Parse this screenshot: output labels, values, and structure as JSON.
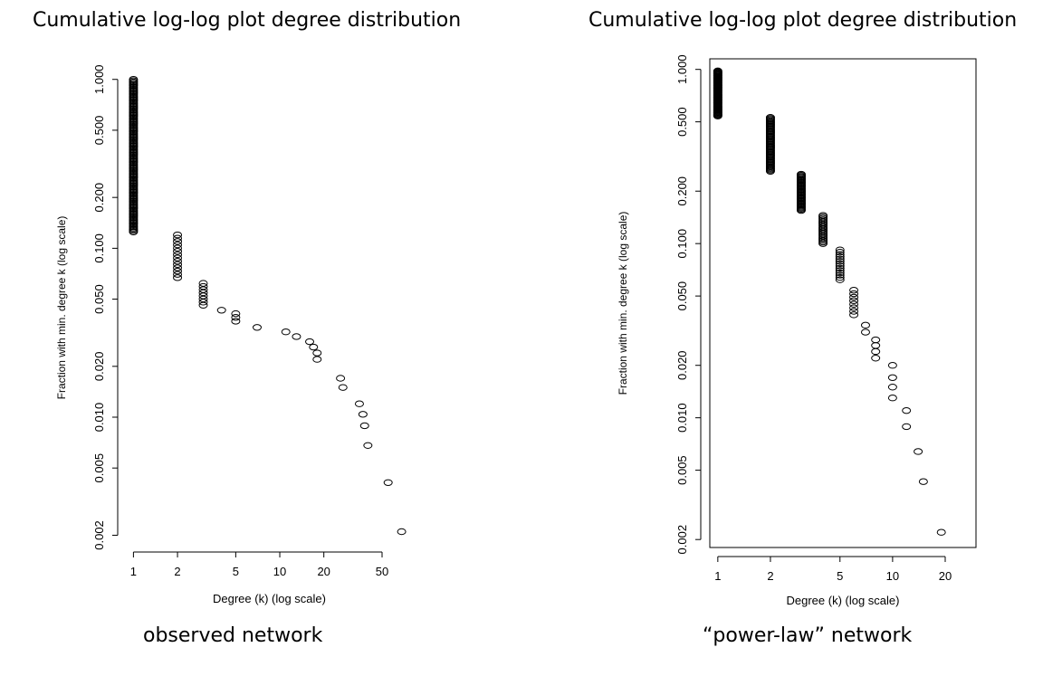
{
  "chart_data": [
    {
      "type": "scatter",
      "title": "Cumulative log-log plot degree distribution",
      "caption": "observed network",
      "xlabel": "Degree (k) (log scale)",
      "ylabel": "Fraction with min. degree k (log scale)",
      "xscale": "log",
      "yscale": "log",
      "xlim": [
        0.9,
        80
      ],
      "ylim": [
        0.0018,
        1.1
      ],
      "x_ticks": [
        1,
        2,
        5,
        10,
        20,
        50
      ],
      "x_tick_labels": [
        "1",
        "2",
        "5",
        "10",
        "20",
        "50"
      ],
      "y_ticks": [
        0.002,
        0.005,
        0.01,
        0.02,
        0.05,
        0.1,
        0.2,
        0.5,
        1.0
      ],
      "y_tick_labels": [
        "0.002",
        "0.005",
        "0.010",
        "0.020",
        "0.050",
        "0.100",
        "0.200",
        "0.500",
        "1.000"
      ],
      "box": false,
      "grid": false,
      "column_ranges": [
        {
          "x": 1,
          "y_from": 0.125,
          "y_to": 1.0,
          "count": 120
        },
        {
          "x": 2,
          "y_from": 0.067,
          "y_to": 0.12,
          "count": 14
        },
        {
          "x": 3,
          "y_from": 0.046,
          "y_to": 0.062,
          "count": 8
        }
      ],
      "points": [
        {
          "x": 4,
          "y": 0.043
        },
        {
          "x": 5,
          "y": 0.041
        },
        {
          "x": 5,
          "y": 0.039
        },
        {
          "x": 5,
          "y": 0.037
        },
        {
          "x": 7,
          "y": 0.034
        },
        {
          "x": 11,
          "y": 0.032
        },
        {
          "x": 13,
          "y": 0.03
        },
        {
          "x": 16,
          "y": 0.028
        },
        {
          "x": 17,
          "y": 0.026
        },
        {
          "x": 18,
          "y": 0.024
        },
        {
          "x": 18,
          "y": 0.022
        },
        {
          "x": 26,
          "y": 0.017
        },
        {
          "x": 27,
          "y": 0.015
        },
        {
          "x": 35,
          "y": 0.012
        },
        {
          "x": 37,
          "y": 0.0104
        },
        {
          "x": 38,
          "y": 0.0089
        },
        {
          "x": 40,
          "y": 0.0068
        },
        {
          "x": 55,
          "y": 0.0041
        },
        {
          "x": 68,
          "y": 0.0021
        }
      ]
    },
    {
      "type": "scatter",
      "title": "Cumulative log-log plot degree distribution",
      "caption": "“power-law” network",
      "xlabel": "Degree (k) (log scale)",
      "ylabel": "Fraction with min. degree k (log scale)",
      "xscale": "log",
      "yscale": "log",
      "xlim": [
        0.9,
        30
      ],
      "ylim": [
        0.0018,
        1.15
      ],
      "x_ticks": [
        1,
        2,
        5,
        10,
        20
      ],
      "x_tick_labels": [
        "1",
        "2",
        "5",
        "10",
        "20"
      ],
      "y_ticks": [
        0.002,
        0.005,
        0.01,
        0.02,
        0.05,
        0.1,
        0.2,
        0.5,
        1.0
      ],
      "y_tick_labels": [
        "0.002",
        "0.005",
        "0.010",
        "0.020",
        "0.050",
        "0.100",
        "0.200",
        "0.500",
        "1.000"
      ],
      "box": true,
      "grid": false,
      "column_ranges": [
        {
          "x": 1,
          "y_from": 0.54,
          "y_to": 0.98,
          "count": 60
        },
        {
          "x": 2,
          "y_from": 0.26,
          "y_to": 0.53,
          "count": 50
        },
        {
          "x": 3,
          "y_from": 0.155,
          "y_to": 0.25,
          "count": 35
        },
        {
          "x": 4,
          "y_from": 0.1,
          "y_to": 0.145,
          "count": 20
        },
        {
          "x": 5,
          "y_from": 0.062,
          "y_to": 0.092,
          "count": 14
        },
        {
          "x": 6,
          "y_from": 0.039,
          "y_to": 0.054,
          "count": 8
        }
      ],
      "points": [
        {
          "x": 7,
          "y": 0.034
        },
        {
          "x": 7,
          "y": 0.031
        },
        {
          "x": 8,
          "y": 0.028
        },
        {
          "x": 8,
          "y": 0.026
        },
        {
          "x": 8,
          "y": 0.024
        },
        {
          "x": 8,
          "y": 0.022
        },
        {
          "x": 10,
          "y": 0.02
        },
        {
          "x": 10,
          "y": 0.017
        },
        {
          "x": 10,
          "y": 0.015
        },
        {
          "x": 10,
          "y": 0.013
        },
        {
          "x": 12,
          "y": 0.011
        },
        {
          "x": 12,
          "y": 0.0089
        },
        {
          "x": 14,
          "y": 0.0064
        },
        {
          "x": 15,
          "y": 0.0043
        },
        {
          "x": 19,
          "y": 0.0022
        }
      ]
    }
  ]
}
